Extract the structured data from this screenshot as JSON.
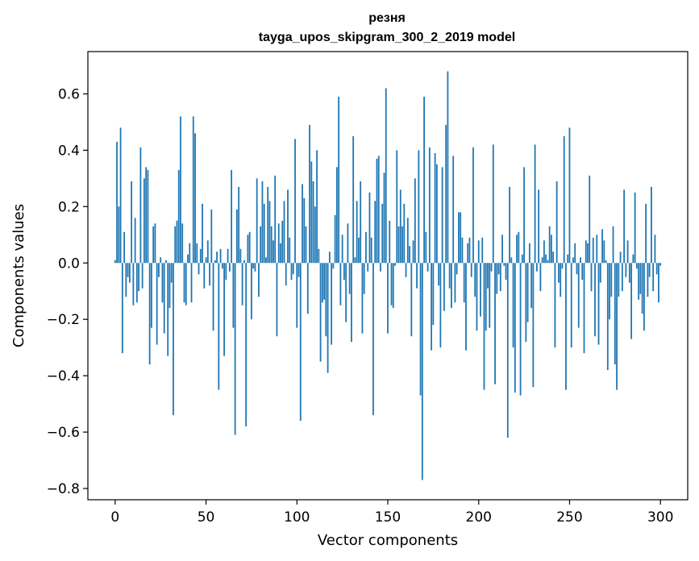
{
  "chart_data": {
    "type": "bar",
    "title": "резня",
    "subtitle": "tayga_upos_skipgram_300_2_2019 model",
    "xlabel": "Vector components",
    "ylabel": "Components values",
    "xlim": [
      -15,
      315
    ],
    "ylim": [
      -0.84,
      0.75
    ],
    "xticks": [
      0,
      50,
      100,
      150,
      200,
      250,
      300
    ],
    "xtick_labels": [
      "0",
      "50",
      "100",
      "150",
      "200",
      "250",
      "300"
    ],
    "yticks": [
      -0.8,
      -0.6,
      -0.4,
      -0.2,
      0.0,
      0.2,
      0.4,
      0.6
    ],
    "ytick_labels": [
      "−0.8",
      "−0.6",
      "−0.4",
      "−0.2",
      "0.0",
      "0.2",
      "0.4",
      "0.6"
    ],
    "grid": false,
    "bar_color": "#1f77b4",
    "values": [
      0.01,
      0.43,
      0.2,
      0.48,
      -0.32,
      0.11,
      -0.12,
      -0.05,
      -0.07,
      0.29,
      -0.15,
      0.16,
      -0.14,
      -0.1,
      0.41,
      -0.09,
      0.3,
      0.34,
      0.33,
      -0.36,
      -0.23,
      0.13,
      0.14,
      -0.29,
      -0.05,
      0.02,
      -0.14,
      -0.25,
      0.01,
      -0.33,
      -0.16,
      -0.07,
      -0.54,
      0.13,
      0.15,
      0.33,
      0.52,
      0.14,
      -0.14,
      -0.15,
      0.03,
      0.07,
      -0.14,
      0.52,
      0.46,
      0.07,
      -0.04,
      0.05,
      0.21,
      -0.09,
      0.02,
      0.08,
      -0.08,
      0.19,
      -0.24,
      0.01,
      0.04,
      -0.45,
      0.05,
      -0.02,
      -0.33,
      -0.06,
      0.05,
      -0.03,
      0.33,
      -0.23,
      -0.61,
      0.19,
      0.27,
      0.05,
      -0.15,
      0.01,
      -0.58,
      0.1,
      0.11,
      -0.2,
      -0.02,
      -0.03,
      0.3,
      -0.12,
      0.13,
      0.29,
      0.21,
      0.02,
      0.27,
      0.22,
      0.13,
      0.08,
      0.31,
      -0.26,
      0.14,
      0.07,
      0.15,
      0.22,
      -0.08,
      0.26,
      0.09,
      -0.06,
      -0.04,
      0.44,
      -0.23,
      -0.05,
      -0.56,
      0.28,
      0.23,
      0.13,
      -0.18,
      0.49,
      0.36,
      0.29,
      0.2,
      0.4,
      0.05,
      -0.35,
      -0.14,
      -0.13,
      -0.26,
      -0.39,
      0.04,
      -0.29,
      -0.02,
      0.17,
      0.34,
      0.59,
      -0.15,
      0.1,
      -0.06,
      -0.21,
      0.14,
      -0.11,
      -0.28,
      0.45,
      0.02,
      0.22,
      0.09,
      0.29,
      -0.25,
      -0.11,
      0.11,
      -0.03,
      0.25,
      0.09,
      -0.54,
      0.22,
      0.37,
      0.38,
      -0.03,
      0.21,
      0.32,
      0.62,
      -0.25,
      0.15,
      -0.15,
      -0.16,
      -0.01,
      0.4,
      0.13,
      0.26,
      0.13,
      0.21,
      -0.05,
      0.16,
      0.06,
      -0.26,
      0.08,
      0.3,
      -0.09,
      0.4,
      -0.47,
      -0.77,
      0.59,
      0.11,
      -0.03,
      0.41,
      -0.31,
      -0.22,
      0.39,
      0.35,
      -0.08,
      -0.3,
      0.34,
      -0.17,
      0.49,
      0.68,
      -0.09,
      -0.16,
      0.38,
      -0.14,
      -0.04,
      0.18,
      0.18,
      0.09,
      -0.14,
      -0.31,
      0.07,
      0.09,
      -0.05,
      0.41,
      -0.12,
      -0.24,
      0.08,
      -0.19,
      0.09,
      -0.45,
      -0.24,
      -0.09,
      -0.23,
      -0.03,
      0.42,
      -0.43,
      -0.11,
      -0.04,
      -0.1,
      0.1,
      -0.01,
      -0.06,
      -0.62,
      0.27,
      0.02,
      -0.3,
      -0.46,
      0.1,
      0.11,
      -0.47,
      0.03,
      0.34,
      -0.28,
      -0.21,
      0.07,
      -0.16,
      -0.44,
      0.42,
      -0.03,
      0.26,
      -0.1,
      0.02,
      0.08,
      0.03,
      0.01,
      0.13,
      0.1,
      0.04,
      -0.3,
      0.29,
      -0.07,
      -0.12,
      -0.02,
      0.45,
      -0.45,
      0.03,
      0.48,
      -0.3,
      0.02,
      0.07,
      -0.04,
      -0.23,
      0.02,
      -0.06,
      -0.32,
      0.08,
      0.07,
      0.31,
      -0.1,
      0.09,
      -0.26,
      0.1,
      -0.29,
      -0.07,
      0.12,
      0.08,
      0.01,
      -0.38,
      -0.2,
      -0.12,
      0.13,
      -0.36,
      -0.45,
      -0.12,
      0.04,
      -0.1,
      0.26,
      -0.05,
      0.08,
      -0.07,
      -0.27,
      0.03,
      0.25,
      -0.02,
      -0.13,
      -0.11,
      -0.18,
      -0.24,
      0.21,
      -0.12,
      -0.05,
      0.27,
      -0.1,
      0.1,
      -0.04,
      -0.14,
      -0.01
    ]
  }
}
